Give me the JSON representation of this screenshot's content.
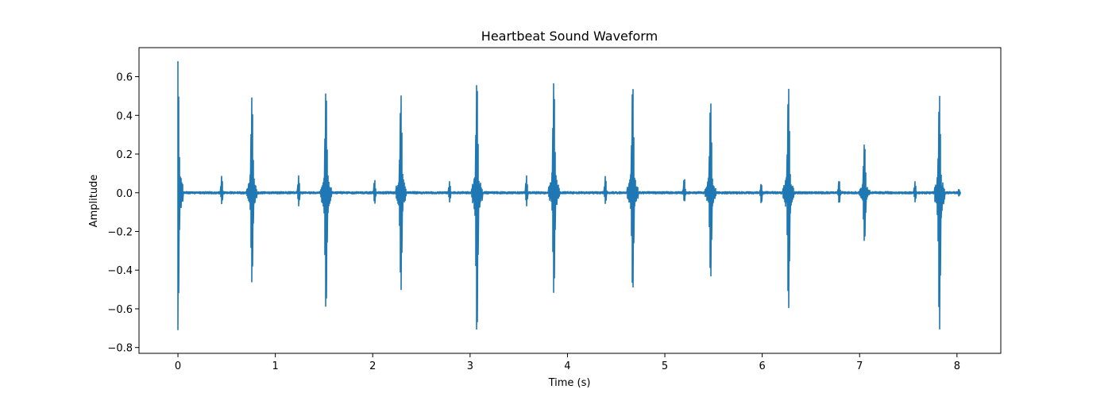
{
  "chart_data": {
    "type": "line",
    "title": "Heartbeat Sound Waveform",
    "xlabel": "Time (s)",
    "ylabel": "Amplitude",
    "xlim": [
      -0.4,
      8.45
    ],
    "ylim": [
      -0.83,
      0.75
    ],
    "x_ticks": [
      0,
      1,
      2,
      3,
      4,
      5,
      6,
      7,
      8
    ],
    "y_ticks": [
      -0.8,
      -0.6,
      -0.4,
      -0.2,
      0.0,
      0.2,
      0.4,
      0.6
    ],
    "x_tick_labels": [
      "0",
      "1",
      "2",
      "3",
      "4",
      "5",
      "6",
      "7",
      "8"
    ],
    "y_tick_labels": [
      "−0.8",
      "−0.6",
      "−0.4",
      "−0.2",
      "0.0",
      "0.2",
      "0.4",
      "0.6"
    ],
    "grid": false,
    "series_color": "#1f77b4",
    "duration": 8.03,
    "beats": [
      {
        "t": 0.0,
        "s1_max": 0.68,
        "s1_min": -0.71,
        "s2_t": 0.45,
        "s2_max": 0.09,
        "s2_min": -0.06
      },
      {
        "t": 0.76,
        "s1_max": 0.5,
        "s1_min": -0.47,
        "s2_t": 1.24,
        "s2_max": 0.09,
        "s2_min": -0.07
      },
      {
        "t": 1.52,
        "s1_max": 0.54,
        "s1_min": -0.62,
        "s2_t": 2.02,
        "s2_max": 0.07,
        "s2_min": -0.06
      },
      {
        "t": 2.29,
        "s1_max": 0.51,
        "s1_min": -0.51,
        "s2_t": 2.79,
        "s2_max": 0.06,
        "s2_min": -0.05
      },
      {
        "t": 3.07,
        "s1_max": 0.59,
        "s1_min": -0.75,
        "s2_t": 3.58,
        "s2_max": 0.09,
        "s2_min": -0.07
      },
      {
        "t": 3.86,
        "s1_max": 0.58,
        "s1_min": -0.53,
        "s2_t": 4.39,
        "s2_max": 0.09,
        "s2_min": -0.06
      },
      {
        "t": 4.67,
        "s1_max": 0.57,
        "s1_min": -0.52,
        "s2_t": 5.2,
        "s2_max": 0.08,
        "s2_min": -0.05
      },
      {
        "t": 5.47,
        "s1_max": 0.48,
        "s1_min": -0.45,
        "s2_t": 5.99,
        "s2_max": 0.05,
        "s2_min": -0.06
      },
      {
        "t": 6.27,
        "s1_max": 0.55,
        "s1_min": -0.61,
        "s2_t": 6.79,
        "s2_max": 0.07,
        "s2_min": -0.06
      },
      {
        "t": 7.05,
        "s1_max": 0.26,
        "s1_min": -0.26,
        "s2_t": 7.57,
        "s2_max": 0.06,
        "s2_min": -0.05
      },
      {
        "t": 7.82,
        "s1_max": 0.51,
        "s1_min": -0.72,
        "s2_t": 8.02,
        "s2_max": 0.02,
        "s2_min": -0.02
      }
    ]
  }
}
